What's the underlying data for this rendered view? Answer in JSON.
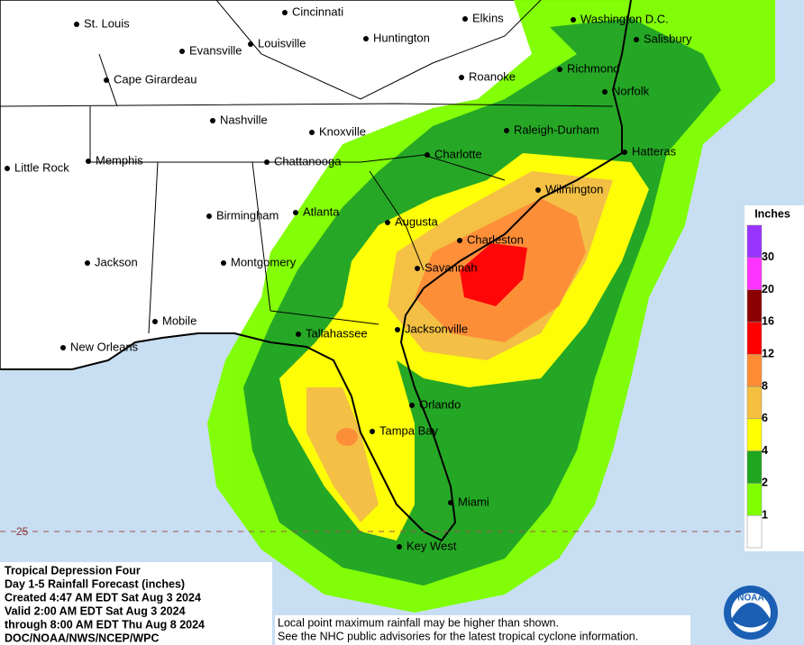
{
  "map": {
    "cities": [
      "St. Louis",
      "Cincinnati",
      "Elkins",
      "Washington D.C.",
      "Evansville",
      "Louisville",
      "Huntington",
      "Salisbury",
      "Cape Girardeau",
      "Roanoke",
      "Richmond",
      "Norfolk",
      "Nashville",
      "Knoxville",
      "Raleigh-Durham",
      "Little Rock",
      "Memphis",
      "Chattanooga",
      "Charlotte",
      "Hatteras",
      "Wilmington",
      "Birmingham",
      "Atlanta",
      "Augusta",
      "Charleston",
      "Jackson",
      "Montgomery",
      "Savannah",
      "Mobile",
      "Tallahassee",
      "Jacksonville",
      "New Orleans",
      "Orlando",
      "Tampa Bay",
      "Miami",
      "Key West"
    ],
    "latitude_label": "25",
    "legend": {
      "title": "Inches",
      "labels": [
        1,
        2,
        4,
        6,
        8,
        12,
        16,
        20,
        30
      ],
      "colors": [
        "#ffffff",
        "#7fff00",
        "#1fa61f",
        "#ffff00",
        "#f5c040",
        "#ff8c33",
        "#ff0000",
        "#8b0000",
        "#ff33ff",
        "#9933ff"
      ]
    },
    "info": [
      "Tropical Depression Four",
      "Day 1-5 Rainfall Forecast (inches)",
      "Created 4:47 AM EDT Sat Aug 3 2024",
      "Valid 2:00 AM EDT Sat Aug 3 2024",
      "through 8:00 AM EDT Thu Aug 8 2024",
      "DOC/NOAA/NWS/NCEP/WPC"
    ],
    "notes": [
      "Local point maximum rainfall may be higher than shown.",
      "See the NHC public advisories for the latest tropical cyclone information."
    ],
    "logo": "NOAA"
  }
}
